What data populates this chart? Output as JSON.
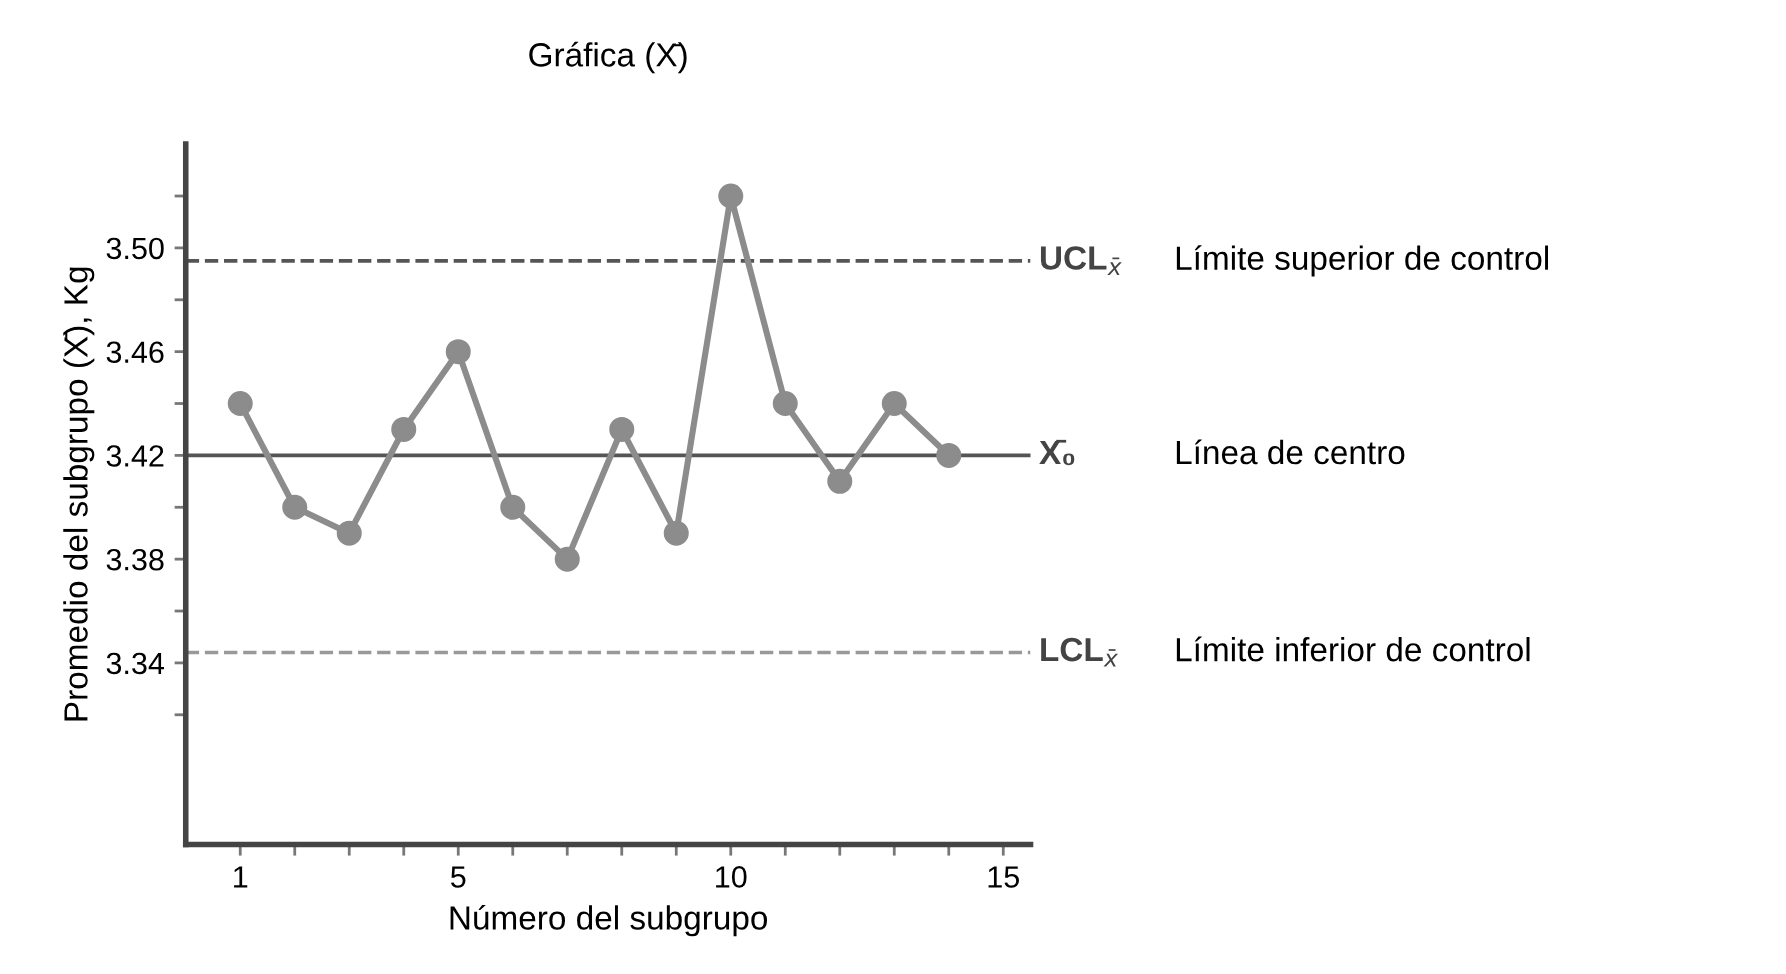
{
  "chart_data": {
    "type": "line",
    "title": "Gráfica (X̄)",
    "xlabel": "Número del subgrupo",
    "ylabel": "Promedio del subgrupo (X̄), Kg",
    "x": [
      1,
      2,
      3,
      4,
      5,
      6,
      7,
      8,
      9,
      10,
      11,
      12,
      13,
      14
    ],
    "series": [
      {
        "color": "#8c8c8c",
        "values": [
          3.44,
          3.4,
          3.39,
          3.43,
          3.46,
          3.4,
          3.38,
          3.43,
          3.39,
          3.52,
          3.44,
          3.41,
          3.44,
          3.42
        ]
      }
    ],
    "marker": "circle",
    "line_style": "solid",
    "grid": false,
    "legend": false,
    "xlim": [
      0,
      15.5
    ],
    "xticks": [
      1,
      {
        "value": 2,
        "label": null
      },
      {
        "value": 3,
        "label": null
      },
      {
        "value": 4,
        "label": null
      },
      5,
      {
        "value": 6,
        "label": null
      },
      {
        "value": 7,
        "label": null
      },
      {
        "value": 8,
        "label": null
      },
      {
        "value": 9,
        "label": null
      },
      10,
      {
        "value": 11,
        "label": null
      },
      {
        "value": 12,
        "label": null
      },
      {
        "value": 13,
        "label": null
      },
      {
        "value": 14,
        "label": null
      },
      15
    ],
    "ylim": [
      3.27,
      3.54
    ],
    "yticks": [
      {
        "value": 3.32,
        "label": null
      },
      3.34,
      {
        "value": 3.36,
        "label": null
      },
      3.38,
      {
        "value": 3.4,
        "label": null
      },
      3.42,
      {
        "value": 3.44,
        "label": null
      },
      3.46,
      {
        "value": 3.48,
        "label": null
      },
      "3.50",
      {
        "value": 3.52,
        "label": null
      }
    ],
    "ref_lines": [
      {
        "axis": "y",
        "value": 3.495,
        "label": "UCL$_{x̄}$",
        "color": "#555555",
        "line_style": "dashed"
      },
      {
        "axis": "y",
        "value": 3.42,
        "label": "X̄₀",
        "color": "#555555",
        "line_style": "solid"
      },
      {
        "axis": "y",
        "value": 3.344,
        "label": "LCL$_{x̄}$",
        "color": "#999999",
        "line_style": "dashed"
      }
    ],
    "annotations": [
      "Límite superior de control",
      "Línea de centro",
      "Límite inferior de control"
    ]
  }
}
